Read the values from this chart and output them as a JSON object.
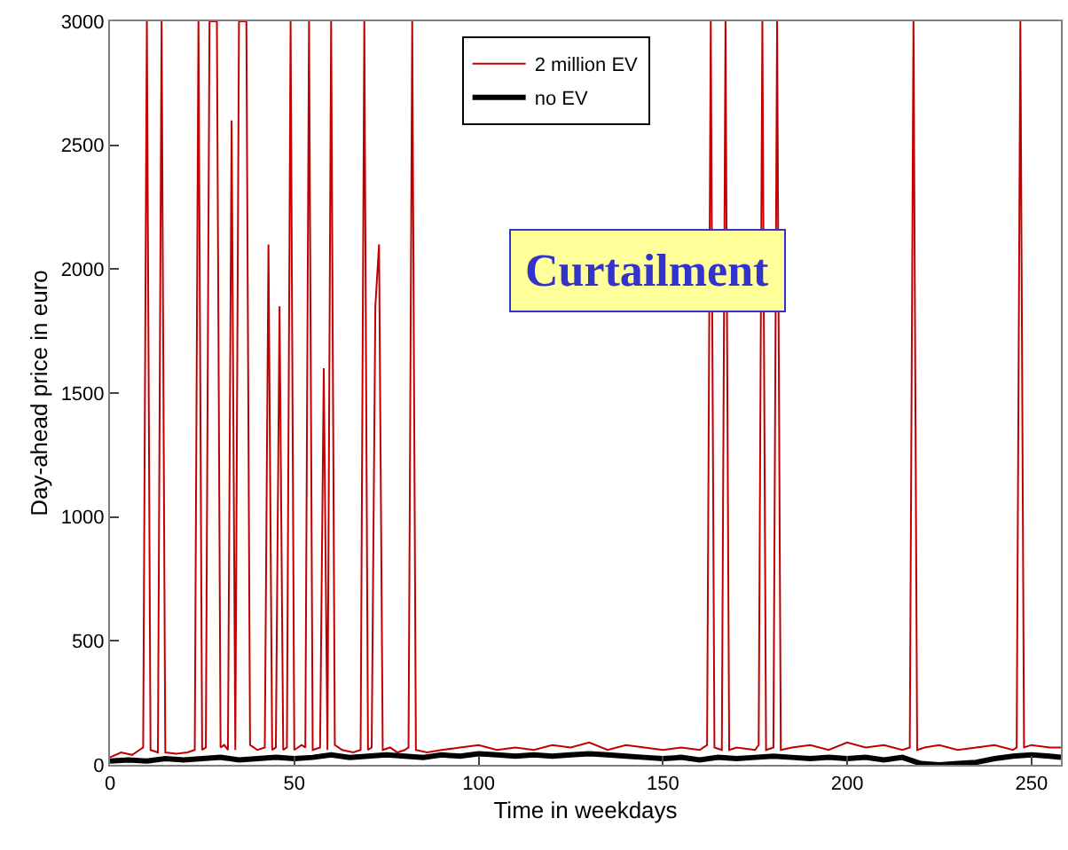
{
  "chart_data": {
    "type": "line",
    "xlabel": "Time in weekdays",
    "ylabel": "Day-ahead price in euro",
    "xlim": [
      0,
      258
    ],
    "ylim": [
      0,
      3000
    ],
    "xticks": [
      0,
      50,
      100,
      150,
      200,
      250
    ],
    "yticks": [
      0,
      500,
      1000,
      1500,
      2000,
      2500,
      3000
    ],
    "legend": "top",
    "marker": "none",
    "annotations": [
      "Curtailment"
    ],
    "series": [
      {
        "name": "2 million EV",
        "color": "#c00000",
        "line_style": "solid",
        "x": [
          0,
          3,
          6,
          8,
          9,
          10,
          11,
          13,
          14,
          15,
          18,
          21,
          23,
          24,
          25,
          26,
          27,
          28,
          29,
          30,
          31,
          32,
          33,
          34,
          35,
          36,
          37,
          38,
          40,
          42,
          43,
          44,
          45,
          46,
          47,
          48,
          49,
          50,
          52,
          53,
          54,
          55,
          57,
          58,
          59,
          60,
          61,
          63,
          66,
          68,
          69,
          70,
          71,
          72,
          73,
          74,
          76,
          78,
          80,
          81,
          82,
          83,
          86,
          90,
          95,
          100,
          105,
          110,
          115,
          120,
          125,
          130,
          135,
          140,
          145,
          150,
          155,
          160,
          162,
          163,
          164,
          166,
          167,
          168,
          170,
          175,
          176,
          177,
          178,
          180,
          181,
          182,
          185,
          190,
          195,
          200,
          205,
          210,
          215,
          217,
          218,
          219,
          221,
          225,
          230,
          235,
          240,
          245,
          246,
          247,
          248,
          250,
          255,
          258
        ],
        "values": [
          30,
          50,
          40,
          60,
          70,
          3000,
          60,
          50,
          3000,
          50,
          45,
          50,
          60,
          3000,
          60,
          70,
          3000,
          3000,
          3000,
          70,
          80,
          60,
          2600,
          60,
          3000,
          3000,
          3000,
          80,
          60,
          70,
          2100,
          60,
          70,
          1850,
          60,
          70,
          3000,
          60,
          80,
          70,
          3000,
          60,
          70,
          1600,
          60,
          3000,
          80,
          60,
          50,
          60,
          3000,
          60,
          70,
          1850,
          2100,
          60,
          70,
          50,
          60,
          70,
          3000,
          60,
          50,
          60,
          70,
          80,
          60,
          70,
          60,
          80,
          70,
          90,
          60,
          80,
          70,
          60,
          70,
          60,
          80,
          3000,
          70,
          60,
          3000,
          60,
          70,
          60,
          80,
          3000,
          60,
          70,
          3000,
          60,
          70,
          80,
          60,
          90,
          70,
          80,
          60,
          70,
          3000,
          60,
          70,
          80,
          60,
          70,
          80,
          60,
          70,
          3000,
          70,
          80,
          70,
          70
        ]
      },
      {
        "name": "no EV",
        "color": "#000000",
        "line_style": "solid",
        "x": [
          0,
          5,
          10,
          15,
          20,
          25,
          30,
          35,
          40,
          45,
          50,
          55,
          60,
          65,
          70,
          75,
          80,
          85,
          90,
          95,
          100,
          105,
          110,
          115,
          120,
          125,
          130,
          135,
          140,
          145,
          150,
          155,
          160,
          165,
          170,
          175,
          180,
          185,
          190,
          195,
          200,
          205,
          210,
          215,
          218,
          220,
          225,
          230,
          235,
          240,
          245,
          250,
          255,
          258
        ],
        "values": [
          15,
          20,
          15,
          25,
          20,
          25,
          30,
          20,
          25,
          30,
          25,
          30,
          40,
          30,
          35,
          40,
          35,
          30,
          40,
          35,
          45,
          40,
          35,
          40,
          35,
          40,
          45,
          40,
          35,
          30,
          25,
          30,
          20,
          30,
          25,
          30,
          35,
          30,
          25,
          30,
          25,
          30,
          20,
          30,
          15,
          5,
          0,
          5,
          10,
          25,
          35,
          40,
          35,
          30
        ]
      }
    ]
  }
}
